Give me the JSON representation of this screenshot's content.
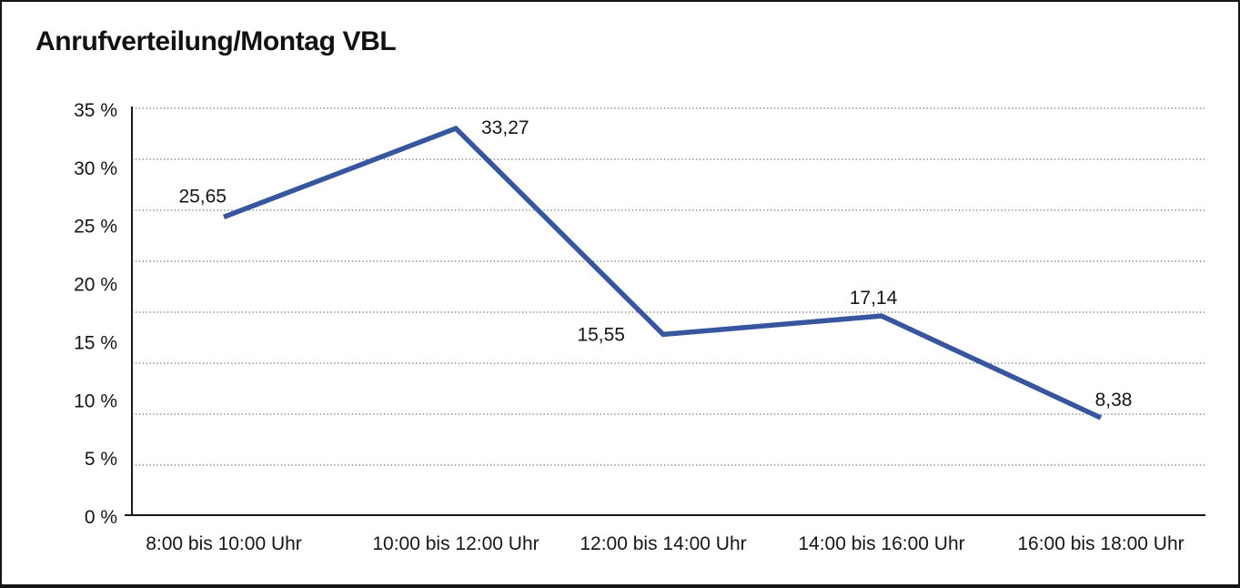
{
  "title": "Anrufverteilung/Montag VBL",
  "chart_data": {
    "type": "line",
    "title": "Anrufverteilung/Montag VBL",
    "categories": [
      "8:00 bis 10:00 Uhr",
      "10:00 bis 12:00 Uhr",
      "12:00 bis 14:00 Uhr",
      "14:00 bis 16:00 Uhr",
      "16:00 bis 18:00 Uhr"
    ],
    "values": [
      25.65,
      33.27,
      15.55,
      17.14,
      8.38
    ],
    "value_labels": [
      "25,65",
      "33,27",
      "15,55",
      "17,14",
      "8,38"
    ],
    "y_ticks": [
      "35 %",
      "30 %",
      "25 %",
      "20 %",
      "15 %",
      "10 %",
      "5 %",
      "0 %"
    ],
    "ylim": [
      0,
      35
    ],
    "y_tick_step": 5,
    "xlabel": "",
    "ylabel": "",
    "legend": "none",
    "grid": "horizontal-dotted",
    "line_color": "#37569E"
  },
  "colors": {
    "background": "#ffffff",
    "border": "#161616",
    "axis": "#1a1a1a",
    "grid": "#4a4a4a",
    "text": "#161616",
    "line": "#37569E"
  }
}
